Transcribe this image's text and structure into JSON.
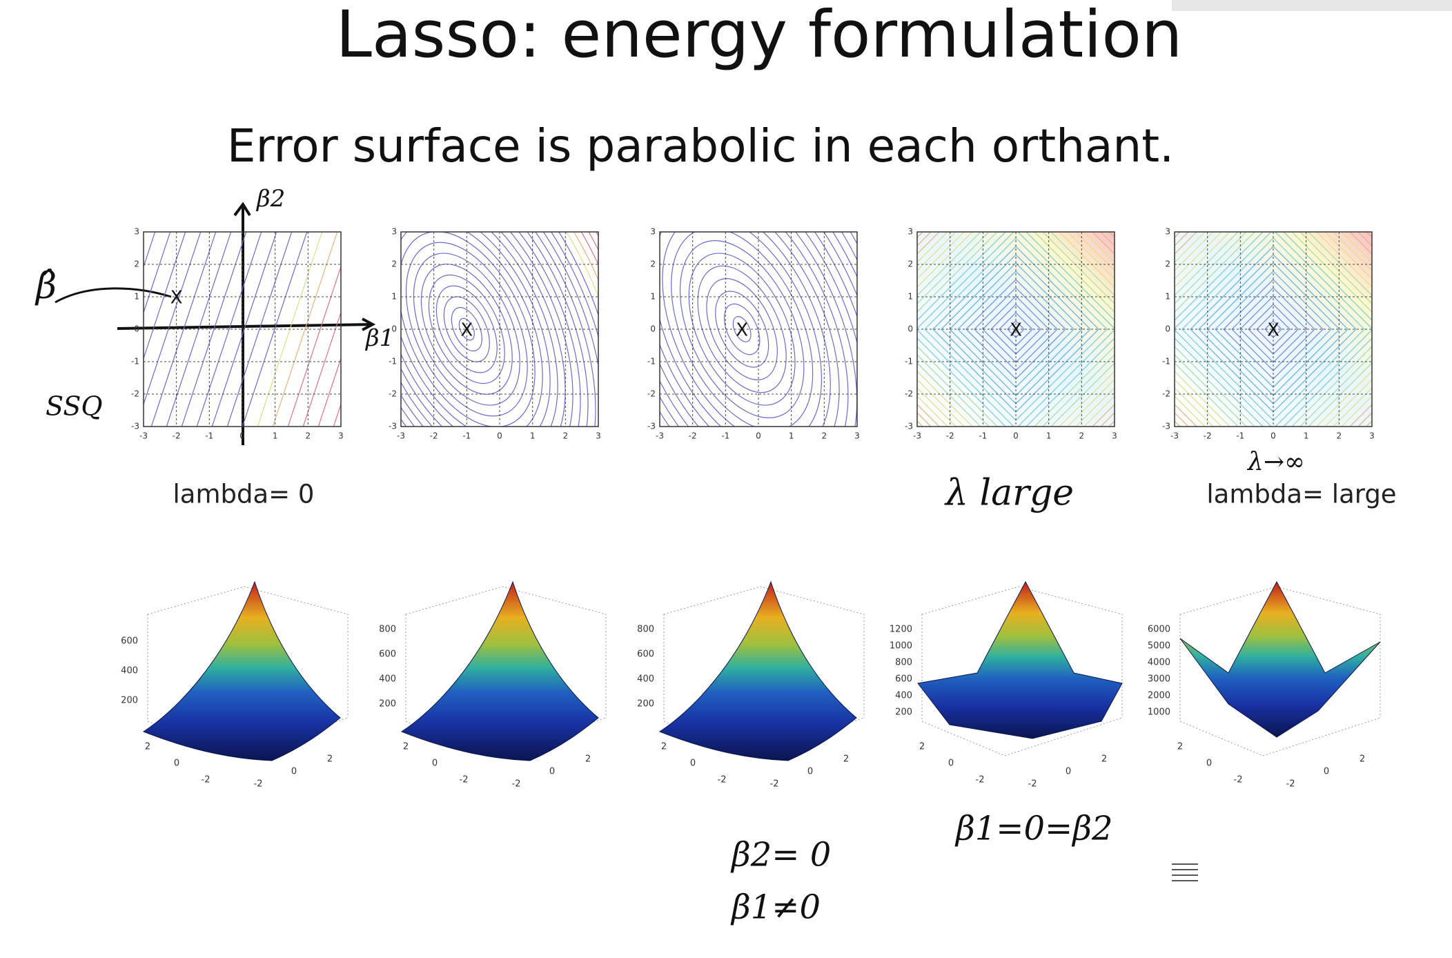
{
  "title": "Lasso: energy formulation",
  "subtitle": "Error surface is parabolic in each orthant.",
  "contour_panels": [
    {
      "marker": "X",
      "xticks": [
        -3,
        -2,
        -1,
        0,
        1,
        2,
        3
      ],
      "yticks": [
        3,
        2,
        1,
        0,
        -1,
        -2,
        -3
      ]
    },
    {
      "marker": "X",
      "xticks": [
        -3,
        -2,
        -1,
        0,
        1,
        2,
        3
      ],
      "yticks": [
        3,
        2,
        1,
        0,
        -1,
        -2,
        -3
      ]
    },
    {
      "marker": "X",
      "xticks": [
        -3,
        -2,
        -1,
        0,
        1,
        2,
        3
      ],
      "yticks": [
        3,
        2,
        1,
        0,
        -1,
        -2,
        -3
      ]
    },
    {
      "marker": "X",
      "xticks": [
        -3,
        -2,
        -1,
        0,
        1,
        2,
        3
      ],
      "yticks": [
        3,
        2,
        1,
        0,
        -1,
        -2,
        -3
      ]
    },
    {
      "marker": "X",
      "xticks": [
        -3,
        -2,
        -1,
        0,
        1,
        2,
        3
      ],
      "yticks": [
        3,
        2,
        1,
        0,
        -1,
        -2,
        -3
      ]
    }
  ],
  "labels": {
    "left": "lambda= 0",
    "right": "lambda= large"
  },
  "surface_panels": [
    {
      "zticks": [
        600,
        400,
        200
      ],
      "left_ticks": [
        2,
        0,
        -2
      ],
      "right_ticks": [
        -2,
        0,
        2
      ]
    },
    {
      "zticks": [
        800,
        600,
        400,
        200
      ],
      "left_ticks": [
        2,
        0,
        -2
      ],
      "right_ticks": [
        -2,
        0,
        2
      ]
    },
    {
      "zticks": [
        800,
        600,
        400,
        200
      ],
      "left_ticks": [
        2,
        0,
        -2
      ],
      "right_ticks": [
        -2,
        0,
        2
      ]
    },
    {
      "zticks": [
        1200,
        1000,
        800,
        600,
        400,
        200
      ],
      "left_ticks": [
        2,
        0,
        -2
      ],
      "right_ticks": [
        -2,
        0,
        2
      ]
    },
    {
      "zticks": [
        6000,
        5000,
        4000,
        3000,
        2000,
        1000
      ],
      "left_ticks": [
        2,
        0,
        -2
      ],
      "right_ticks": [
        -2,
        0,
        2
      ]
    }
  ],
  "handwriting": {
    "beta_hat": "β̂",
    "beta2_axis": "β2",
    "beta1_axis": "β1",
    "ssq": "SSQ",
    "lambda_large": "λ large",
    "lambda_inf": "λ→∞",
    "beta2_zero": "β2= 0",
    "beta1_nonzero": "β1≠0",
    "both_zero": "β1=0=β2"
  }
}
